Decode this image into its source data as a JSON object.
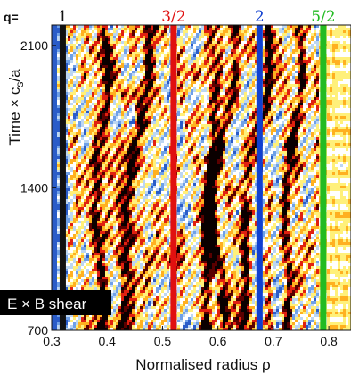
{
  "chart_data": {
    "type": "heatmap",
    "title": "",
    "xlabel": "Normalised radius  ρ",
    "ylabel": "Time × c",
    "ylabel_sub": "s",
    "ylabel_tail": "/a",
    "xlim": [
      0.3,
      0.84
    ],
    "ylim": [
      700,
      2200
    ],
    "x_ticks": [
      {
        "value": 0.3,
        "label": "0.3"
      },
      {
        "value": 0.4,
        "label": "0.4"
      },
      {
        "value": 0.5,
        "label": "0.5"
      },
      {
        "value": 0.6,
        "label": "0.6"
      },
      {
        "value": 0.7,
        "label": "0.7"
      },
      {
        "value": 0.8,
        "label": "0.8"
      }
    ],
    "y_ticks": [
      {
        "value": 700,
        "label": "700"
      },
      {
        "value": 1400,
        "label": "1400"
      },
      {
        "value": 2100,
        "label": "2100"
      }
    ],
    "q_prefix": "q=",
    "rational_surfaces": [
      {
        "q": "1",
        "rho": 0.32,
        "color": "#111111"
      },
      {
        "q": "3/2",
        "rho": 0.52,
        "color": "#e01010"
      },
      {
        "q": "2",
        "rho": 0.675,
        "color": "#1040d0"
      },
      {
        "q": "5/2",
        "rho": 0.79,
        "color": "#22bb22"
      }
    ],
    "colormap": [
      "#2a5cc8",
      "#6fa0e8",
      "#bcd6f2",
      "#ffffff",
      "#fff07a",
      "#ffb020",
      "#e02010",
      "#5a0000",
      "#0a0000"
    ],
    "annotation": {
      "text": "E × B shear",
      "color": "#000000"
    },
    "shear_band_color": "#2a5cc8"
  }
}
